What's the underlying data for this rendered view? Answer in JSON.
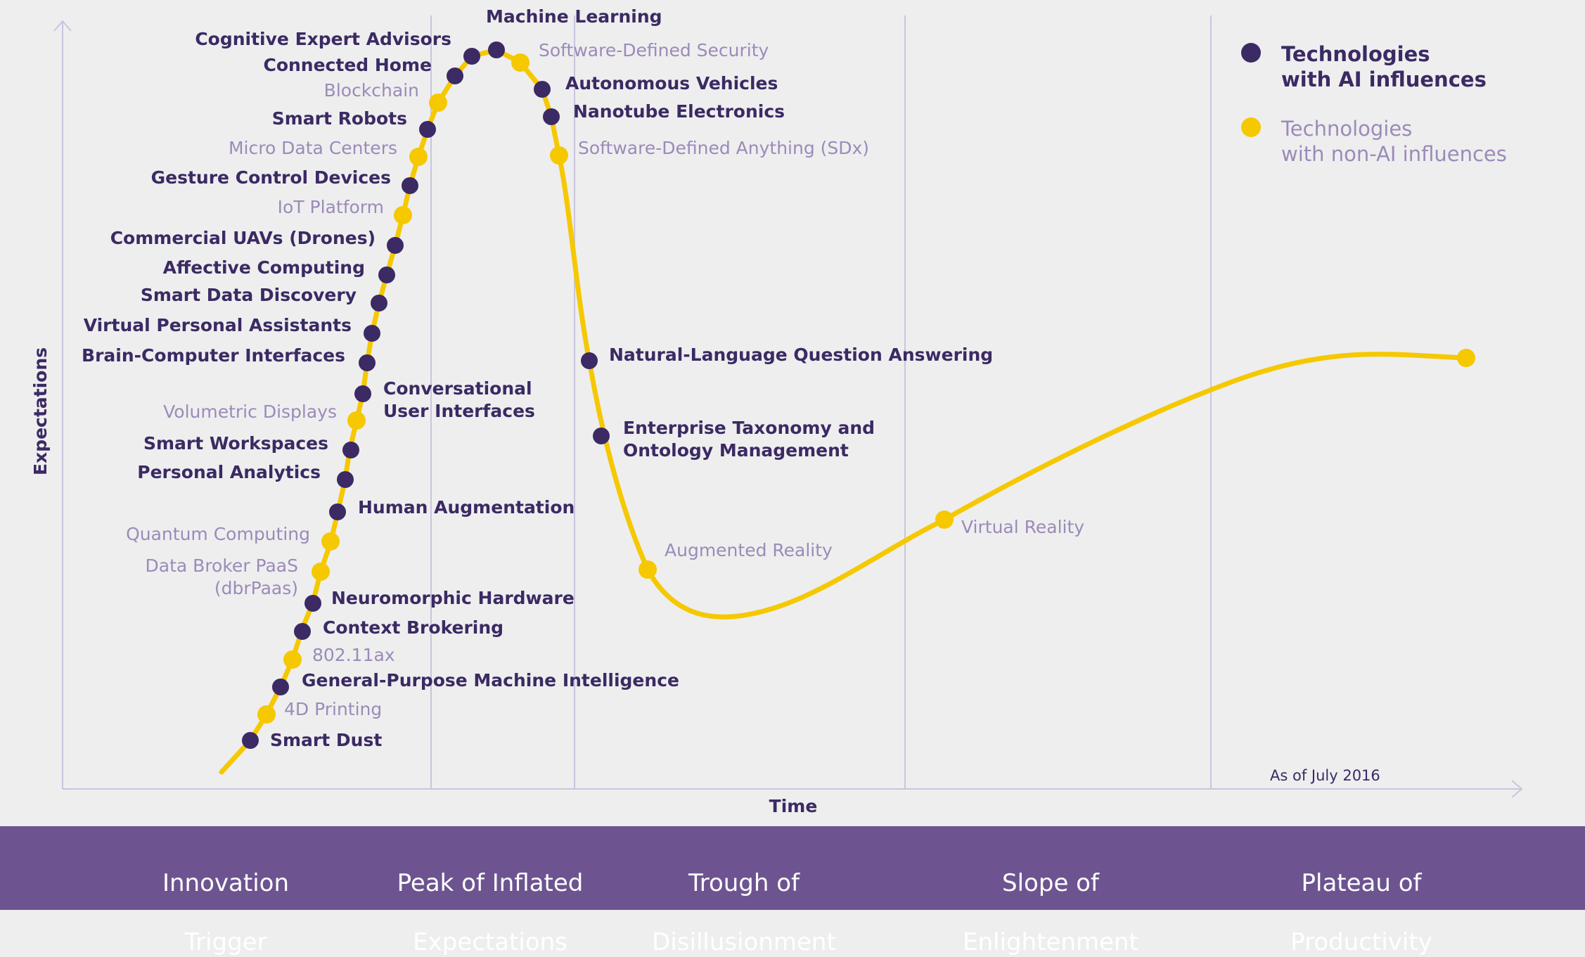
{
  "axis": {
    "y_label": "Expectations",
    "x_label": "Time"
  },
  "note": "As of July 2016",
  "legend": [
    {
      "label_line1": "Technologies",
      "label_line2": "with AI influences",
      "kind": "ai"
    },
    {
      "label_line1": "Technologies",
      "label_line2": "with non-AI influences",
      "kind": "nonai"
    }
  ],
  "phases": [
    {
      "line1": "Innovation",
      "line2": "Trigger"
    },
    {
      "line1": "Peak of Inflated",
      "line2": "Expectations"
    },
    {
      "line1": "Trough of",
      "line2": "Disillusionment"
    },
    {
      "line1": "Slope of",
      "line2": "Enlightenment"
    },
    {
      "line1": "Plateau of",
      "line2": "Productivity"
    }
  ],
  "colors": {
    "background": "#eeeeef",
    "curve": "#f5c800",
    "ai_marker": "#3b2a63",
    "nonai_marker": "#f5c800",
    "ai_text": "#3b2a63",
    "nonai_text": "#9b8bb8",
    "phase_bar": "#6d5490",
    "axis": "#c9c5dc"
  },
  "technologies": [
    {
      "name": "Smart Dust",
      "kind": "ai"
    },
    {
      "name": "4D Printing",
      "kind": "nonai"
    },
    {
      "name": "General-Purpose Machine Intelligence",
      "kind": "ai"
    },
    {
      "name": "802.11ax",
      "kind": "nonai"
    },
    {
      "name": "Context Brokering",
      "kind": "ai"
    },
    {
      "name": "Neuromorphic Hardware",
      "kind": "ai"
    },
    {
      "name": "Data Broker PaaS",
      "name2": "(dbrPaas)",
      "kind": "nonai"
    },
    {
      "name": "Quantum Computing",
      "kind": "nonai"
    },
    {
      "name": "Human Augmentation",
      "kind": "ai"
    },
    {
      "name": "Personal Analytics",
      "kind": "ai"
    },
    {
      "name": "Smart Workspaces",
      "kind": "ai"
    },
    {
      "name": "Volumetric Displays",
      "kind": "nonai"
    },
    {
      "name": "Conversational",
      "name2": "User Interfaces",
      "kind": "ai"
    },
    {
      "name": "Brain-Computer Interfaces",
      "kind": "ai"
    },
    {
      "name": "Virtual Personal Assistants",
      "kind": "ai"
    },
    {
      "name": "Smart Data Discovery",
      "kind": "ai"
    },
    {
      "name": "Affective Computing",
      "kind": "ai"
    },
    {
      "name": "Commercial UAVs (Drones)",
      "kind": "ai"
    },
    {
      "name": "IoT Platform",
      "kind": "nonai"
    },
    {
      "name": "Gesture Control Devices",
      "kind": "ai"
    },
    {
      "name": "Micro Data Centers",
      "kind": "nonai"
    },
    {
      "name": "Smart Robots",
      "kind": "ai"
    },
    {
      "name": "Blockchain",
      "kind": "nonai"
    },
    {
      "name": "Connected Home",
      "kind": "ai"
    },
    {
      "name": "Cognitive Expert Advisors",
      "kind": "ai"
    },
    {
      "name": "Machine Learning",
      "kind": "ai"
    },
    {
      "name": "Software-Defined Security",
      "kind": "nonai"
    },
    {
      "name": "Autonomous Vehicles",
      "kind": "ai"
    },
    {
      "name": "Nanotube Electronics",
      "kind": "ai"
    },
    {
      "name": "Software-Defined Anything (SDx)",
      "kind": "nonai"
    },
    {
      "name": "Natural-Language Question Answering",
      "kind": "ai"
    },
    {
      "name": "Enterprise Taxonomy and",
      "name2": "Ontology Management",
      "kind": "ai"
    },
    {
      "name": "Augmented Reality",
      "kind": "nonai"
    },
    {
      "name": "Virtual Reality",
      "kind": "nonai"
    },
    {
      "name": "",
      "kind": "nonai"
    }
  ]
}
